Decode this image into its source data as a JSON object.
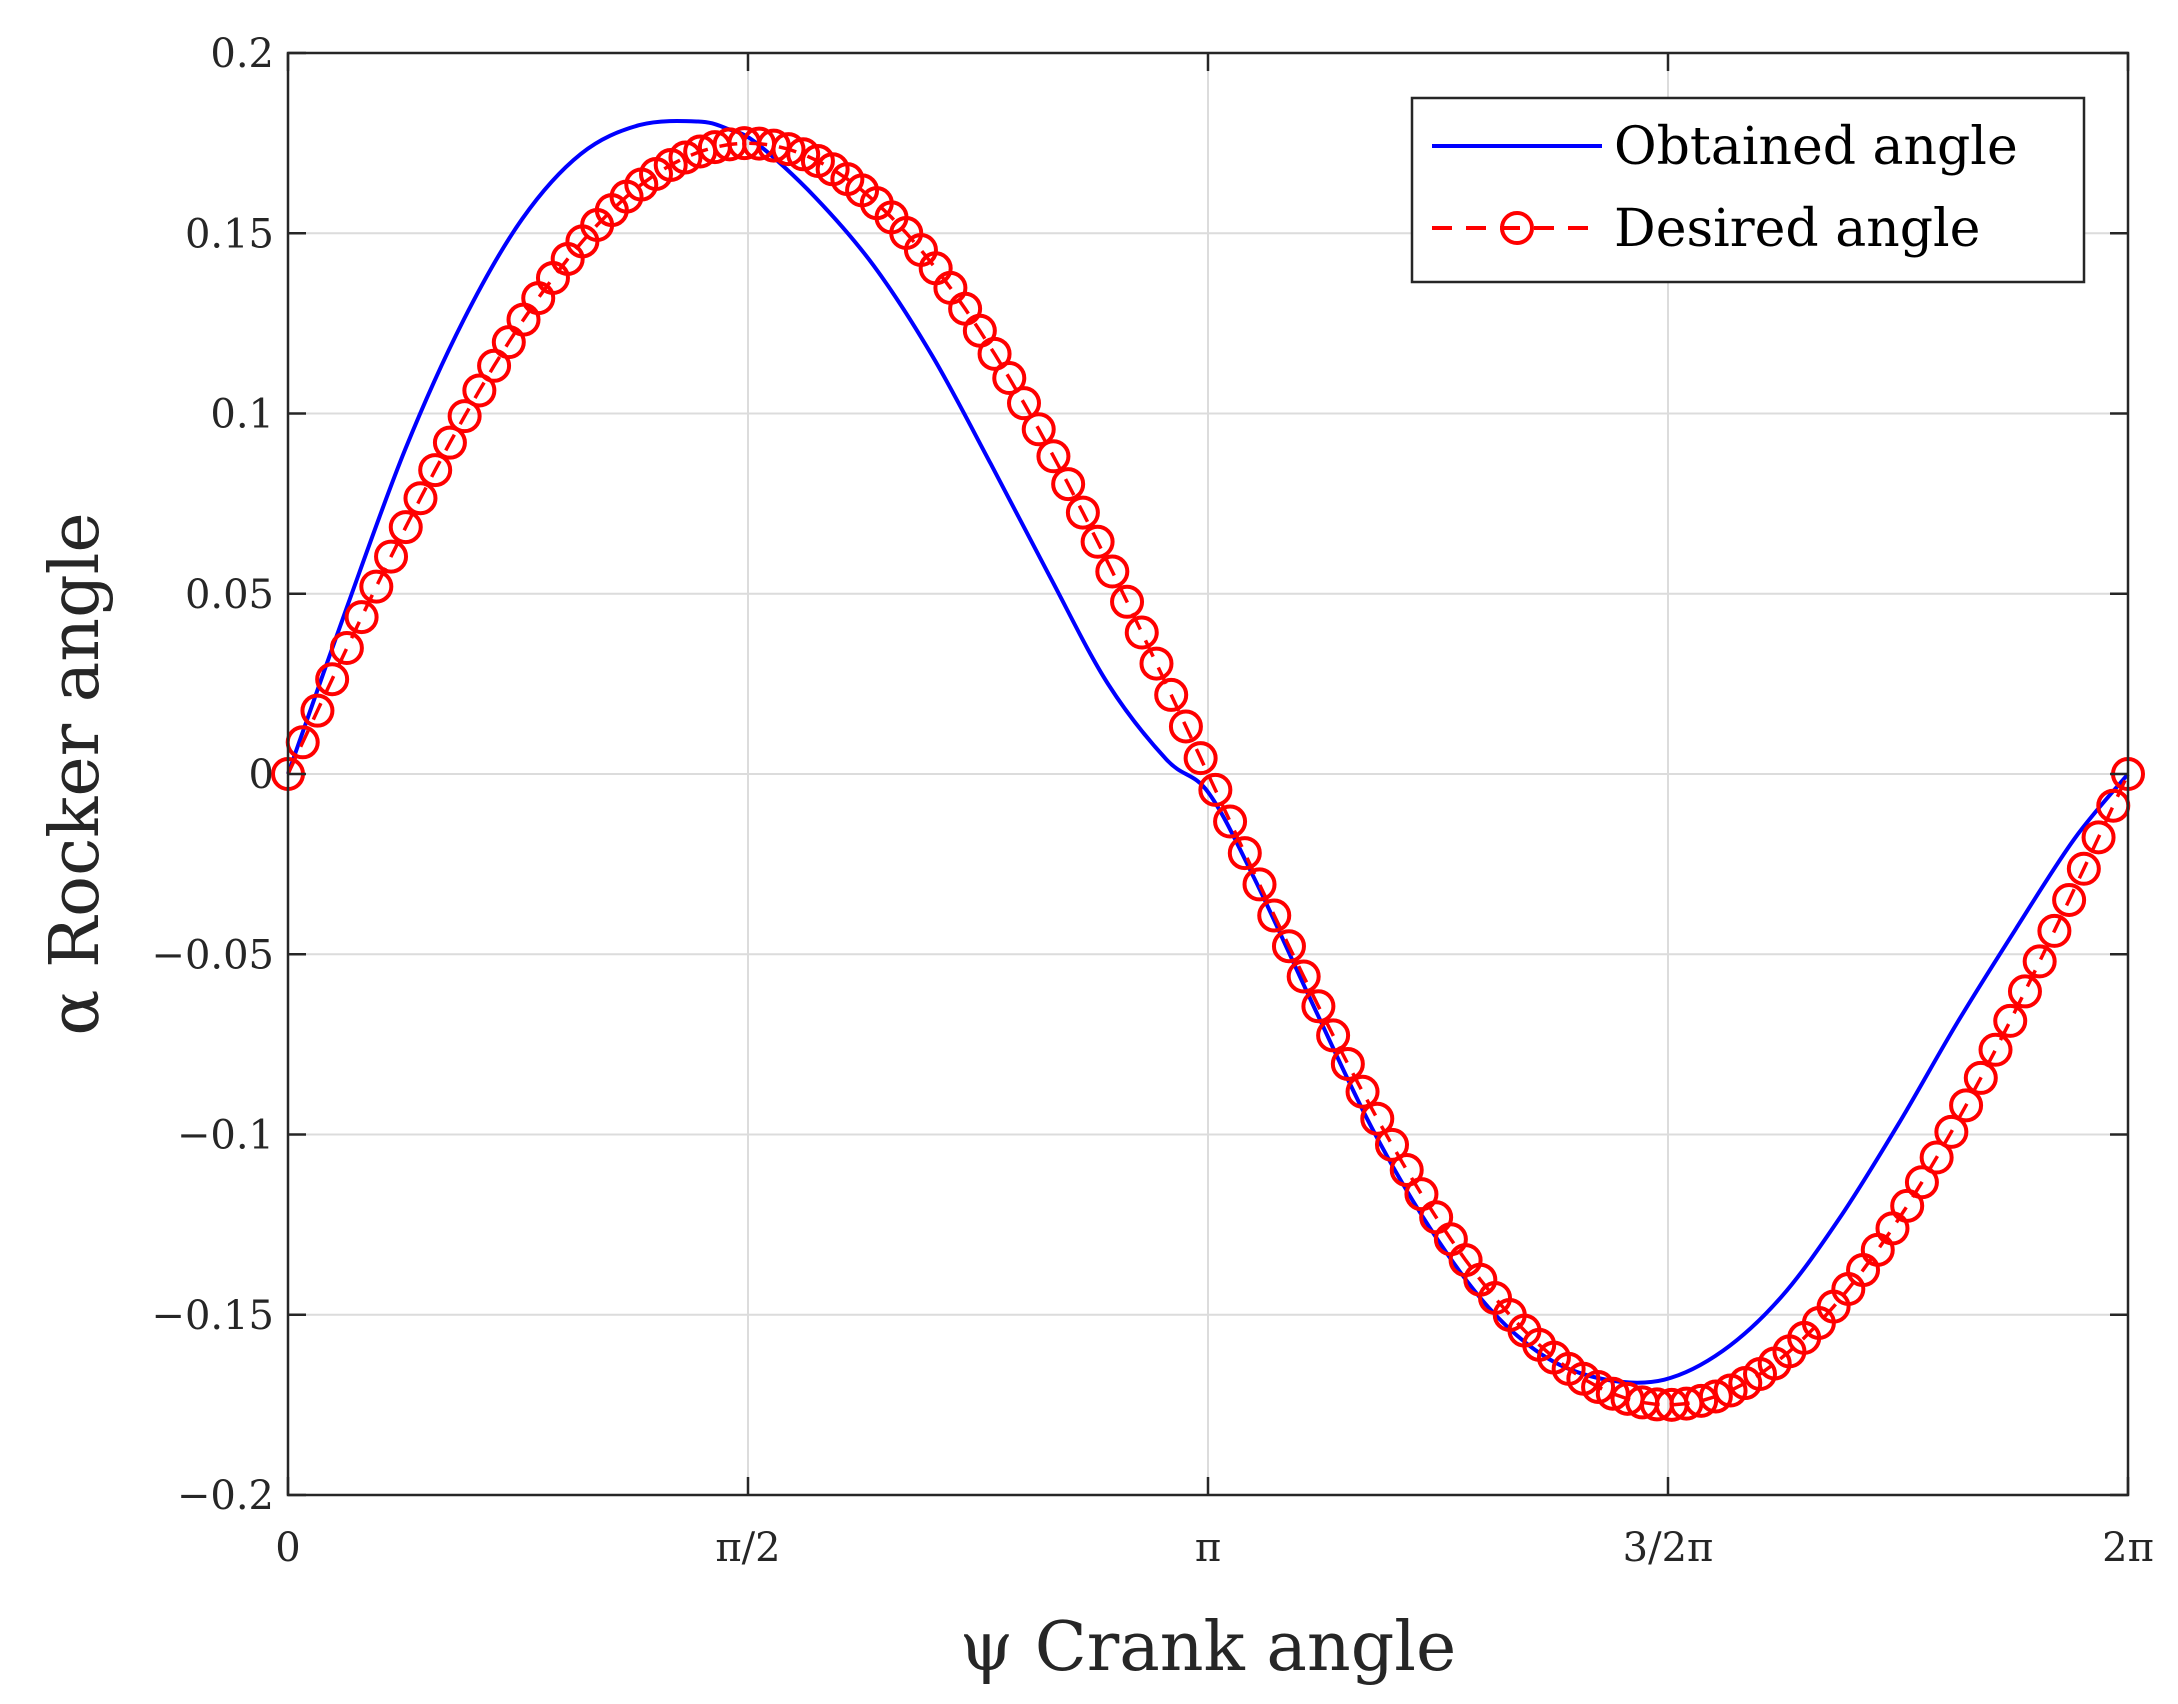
{
  "chart_data": {
    "type": "line",
    "title": "",
    "xlabel": "ψ Crank angle",
    "ylabel": "α Rocker angle",
    "xlim": [
      0,
      6.283185307
    ],
    "ylim": [
      -0.2,
      0.2
    ],
    "grid": true,
    "legend_position": "top-right",
    "x_ticks": [
      {
        "value": 0,
        "label": "0"
      },
      {
        "value": 1.570796327,
        "label": "π/2"
      },
      {
        "value": 3.141592654,
        "label": "π"
      },
      {
        "value": 4.71238898,
        "label": "3/2π"
      },
      {
        "value": 6.283185307,
        "label": "2π"
      }
    ],
    "y_ticks": [
      {
        "value": 0.2,
        "label": "0.2"
      },
      {
        "value": 0.15,
        "label": "0.15"
      },
      {
        "value": 0.1,
        "label": "0.1"
      },
      {
        "value": 0.05,
        "label": "0.05"
      },
      {
        "value": 0,
        "label": "0"
      },
      {
        "value": -0.05,
        "label": "−0.05"
      },
      {
        "value": -0.1,
        "label": "−0.1"
      },
      {
        "value": -0.15,
        "label": "−0.15"
      },
      {
        "value": -0.2,
        "label": "−0.2"
      }
    ],
    "series": [
      {
        "name": "Obtained angle",
        "color": "#0000ff",
        "style": "solid",
        "x": [
          0,
          0.2,
          0.4,
          0.6,
          0.8,
          1.0,
          1.2,
          1.4,
          1.5,
          1.6,
          1.8,
          2.0,
          2.2,
          2.4,
          2.6,
          2.8,
          3.0,
          3.1416,
          3.3,
          3.5,
          3.7,
          3.9,
          4.1,
          4.3,
          4.5,
          4.7,
          4.9,
          5.1,
          5.3,
          5.5,
          5.7,
          5.9,
          6.1,
          6.2832
        ],
        "y": [
          0,
          0.046,
          0.09,
          0.126,
          0.154,
          0.172,
          0.18,
          0.181,
          0.179,
          0.175,
          0.16,
          0.141,
          0.116,
          0.086,
          0.055,
          0.025,
          0.004,
          -0.005,
          -0.029,
          -0.064,
          -0.098,
          -0.126,
          -0.148,
          -0.162,
          -0.168,
          -0.168,
          -0.16,
          -0.145,
          -0.123,
          -0.097,
          -0.069,
          -0.043,
          -0.018,
          0
        ]
      },
      {
        "name": "Desired angle",
        "color": "#ff0000",
        "style": "dashed",
        "marker": "circle",
        "amplitude": 0.175,
        "points": 126,
        "x_start": 0,
        "x_end": 6.283185307
      }
    ]
  }
}
